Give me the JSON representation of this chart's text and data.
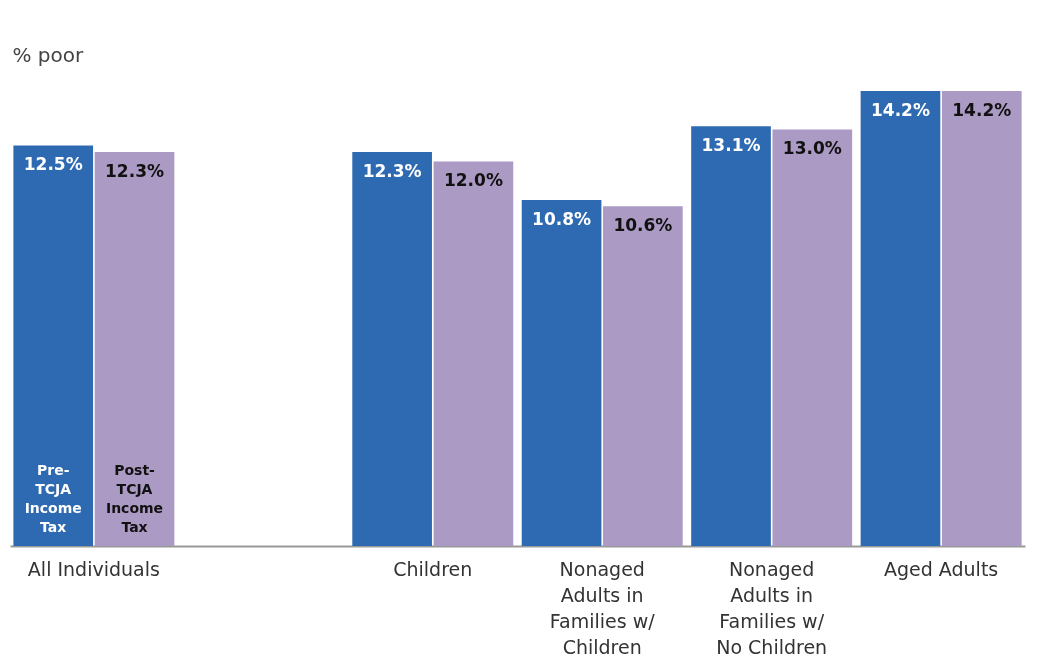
{
  "chart_data": {
    "type": "bar",
    "ylabel": "% poor",
    "categories": [
      "All Individuals",
      null,
      "Children",
      "Nonaged Adults in Families w/ Children",
      "Nonaged Adults in Families w/ No Children",
      "Aged Adults"
    ],
    "series": [
      {
        "name": "Pre-TCJA Income Tax",
        "color": "#2e6ab1",
        "values": [
          12.5,
          null,
          12.3,
          10.8,
          13.1,
          14.2
        ],
        "value_labels": [
          "12.5%",
          null,
          "12.3%",
          "10.8%",
          "13.1%",
          "14.2%"
        ]
      },
      {
        "name": "Post-TCJA Income Tax",
        "color": "#ab9ac4",
        "values": [
          12.3,
          null,
          12.0,
          10.6,
          13.0,
          14.2
        ],
        "value_labels": [
          "12.3%",
          null,
          "12.0%",
          "10.6%",
          "13.0%",
          "14.2%"
        ]
      }
    ],
    "legend": false,
    "grid": false
  }
}
